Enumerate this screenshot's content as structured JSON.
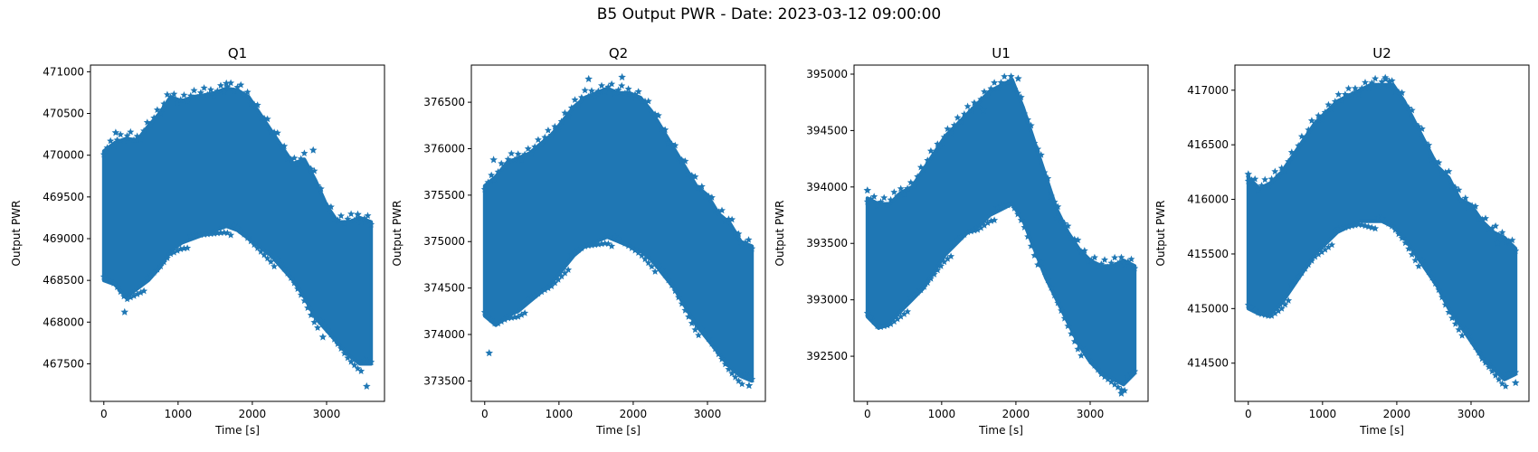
{
  "figure": {
    "title": "B5 Output PWR - Date: 2023-03-12 09:00:00"
  },
  "chart_data": [
    {
      "type": "scatter",
      "title": "Q1",
      "xlabel": "Time [s]",
      "ylabel": "Output PWR",
      "marker": "star",
      "color": "#1f77b4",
      "xlim": [
        -180,
        3780
      ],
      "ylim": [
        467050,
        471080
      ],
      "xticks": [
        0,
        1000,
        2000,
        3000
      ],
      "yticks": [
        467500,
        468000,
        468500,
        469000,
        469500,
        470000,
        470500,
        471000
      ],
      "x": [
        0,
        150,
        300,
        450,
        600,
        750,
        900,
        1050,
        1200,
        1350,
        1500,
        1650,
        1800,
        1950,
        2100,
        2250,
        2400,
        2550,
        2700,
        2850,
        3000,
        3150,
        3300,
        3450,
        3600
      ],
      "y_upper": [
        470050,
        470150,
        470200,
        470180,
        470350,
        470500,
        470700,
        470650,
        470700,
        470720,
        470750,
        470800,
        470780,
        470700,
        470500,
        470300,
        470100,
        469900,
        469950,
        469700,
        469400,
        469200,
        469200,
        469250,
        469200
      ],
      "y_lower": [
        468500,
        468450,
        468300,
        468400,
        468500,
        468650,
        468850,
        468950,
        469000,
        469050,
        469100,
        469150,
        469100,
        469000,
        468900,
        468800,
        468650,
        468500,
        468300,
        468050,
        467900,
        467750,
        467600,
        467500,
        467500
      ],
      "outliers": [
        [
          280,
          468120
        ],
        [
          160,
          470270
        ],
        [
          1650,
          470860
        ],
        [
          3540,
          467230
        ],
        [
          2950,
          467820
        ],
        [
          2820,
          470060
        ],
        [
          3420,
          469290
        ]
      ]
    },
    {
      "type": "scatter",
      "title": "Q2",
      "xlabel": "Time [s]",
      "ylabel": "Output PWR",
      "marker": "star",
      "color": "#1f77b4",
      "xlim": [
        -180,
        3780
      ],
      "ylim": [
        373280,
        376900
      ],
      "xticks": [
        0,
        1000,
        2000,
        3000
      ],
      "yticks": [
        373500,
        374000,
        374500,
        375000,
        375500,
        376000,
        376500
      ],
      "x": [
        0,
        150,
        300,
        450,
        600,
        750,
        900,
        1050,
        1200,
        1350,
        1500,
        1650,
        1800,
        1950,
        2100,
        2250,
        2400,
        2550,
        2700,
        2850,
        3000,
        3150,
        3300,
        3450,
        3600
      ],
      "y_upper": [
        375600,
        375700,
        375850,
        375900,
        375950,
        376050,
        376150,
        376300,
        376450,
        376550,
        376600,
        376650,
        376600,
        376600,
        376550,
        376400,
        376200,
        376000,
        375800,
        375600,
        375500,
        375300,
        375200,
        375000,
        374950
      ],
      "y_lower": [
        374200,
        374100,
        374200,
        374250,
        374350,
        374450,
        374550,
        374700,
        374850,
        374950,
        375000,
        375050,
        375000,
        374950,
        374900,
        374800,
        374650,
        374500,
        374300,
        374100,
        373950,
        373800,
        373650,
        373550,
        373500
      ],
      "outliers": [
        [
          60,
          373800
        ],
        [
          1400,
          376750
        ],
        [
          1850,
          376770
        ],
        [
          3560,
          373450
        ],
        [
          120,
          375880
        ]
      ]
    },
    {
      "type": "scatter",
      "title": "U1",
      "xlabel": "Time [s]",
      "ylabel": "Output PWR",
      "marker": "star",
      "color": "#1f77b4",
      "xlim": [
        -180,
        3780
      ],
      "ylim": [
        392100,
        395080
      ],
      "xticks": [
        0,
        1000,
        2000,
        3000
      ],
      "yticks": [
        392500,
        393000,
        393500,
        394000,
        394500,
        395000
      ],
      "x": [
        0,
        150,
        300,
        450,
        600,
        750,
        900,
        1050,
        1200,
        1350,
        1500,
        1650,
        1800,
        1950,
        2100,
        2250,
        2400,
        2550,
        2700,
        2850,
        3000,
        3150,
        3300,
        3450,
        3600
      ],
      "y_upper": [
        393900,
        393850,
        393850,
        393950,
        394000,
        394150,
        394300,
        394450,
        394550,
        394650,
        394750,
        394850,
        394900,
        394950,
        394700,
        394400,
        394100,
        393800,
        393600,
        393450,
        393350,
        393300,
        393300,
        393350,
        393300
      ],
      "y_lower": [
        392850,
        392750,
        392800,
        392900,
        393000,
        393100,
        393250,
        393400,
        393500,
        393600,
        393650,
        393750,
        393800,
        393850,
        393700,
        393450,
        393200,
        393000,
        392800,
        392600,
        392450,
        392350,
        392300,
        392250,
        392350
      ],
      "outliers": [
        [
          0,
          393970
        ],
        [
          1560,
          394680
        ],
        [
          2030,
          394960
        ],
        [
          3420,
          392170
        ],
        [
          2550,
          393730
        ]
      ]
    },
    {
      "type": "scatter",
      "title": "U2",
      "xlabel": "Time [s]",
      "ylabel": "Output PWR",
      "marker": "star",
      "color": "#1f77b4",
      "xlim": [
        -180,
        3780
      ],
      "ylim": [
        414150,
        417230
      ],
      "xticks": [
        0,
        1000,
        2000,
        3000
      ],
      "yticks": [
        414500,
        415000,
        415500,
        416000,
        416500,
        417000
      ],
      "x": [
        0,
        150,
        300,
        450,
        600,
        750,
        900,
        1050,
        1200,
        1350,
        1500,
        1650,
        1800,
        1950,
        2100,
        2250,
        2400,
        2550,
        2700,
        2850,
        3000,
        3150,
        3300,
        3450,
        3600
      ],
      "y_upper": [
        416200,
        416100,
        416150,
        416250,
        416400,
        416550,
        416700,
        416800,
        416900,
        416950,
        417000,
        417050,
        417050,
        417050,
        416900,
        416700,
        416500,
        416300,
        416200,
        416000,
        415950,
        415800,
        415700,
        415650,
        415550
      ],
      "y_lower": [
        415000,
        414950,
        414950,
        415050,
        415200,
        415350,
        415500,
        415600,
        415700,
        415750,
        415800,
        415800,
        415800,
        415750,
        415650,
        415500,
        415350,
        415200,
        415000,
        414850,
        414700,
        414550,
        414450,
        414350,
        414400
      ],
      "outliers": [
        [
          0,
          416230
        ],
        [
          1850,
          417100
        ],
        [
          3600,
          414320
        ],
        [
          1900,
          417080
        ],
        [
          3360,
          415600
        ]
      ]
    }
  ]
}
